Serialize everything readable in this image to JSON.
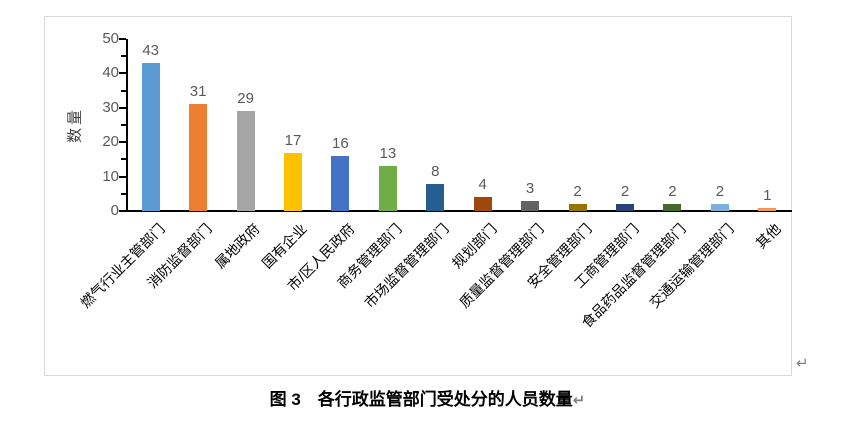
{
  "page": {
    "paragraph_mark": "↵"
  },
  "chart_data": {
    "type": "bar",
    "title": "图 3　各行政监管部门受处分的人员数量",
    "xlabel": "",
    "ylabel": "数量",
    "ylim": [
      0,
      50
    ],
    "yticks": [
      0,
      10,
      20,
      30,
      40,
      50
    ],
    "minor_tick_step": 5,
    "grid": false,
    "legend": "none",
    "value_labels_shown": true,
    "categories": [
      "燃气行业主管部门",
      "消防监督部门",
      "属地政府",
      "国有企业",
      "市/区人民政府",
      "商务管理部门",
      "市场监督管理部门",
      "规划部门",
      "质量监督管理部门",
      "安全管理部门",
      "工商管理部门",
      "食品药品监督管理部门",
      "交通运输管理部门",
      "其他"
    ],
    "values": [
      43,
      31,
      29,
      17,
      16,
      13,
      8,
      4,
      3,
      2,
      2,
      2,
      2,
      1
    ],
    "bar_colors": [
      "#5B9BD5",
      "#ED7D31",
      "#A5A5A5",
      "#FFC000",
      "#4472C4",
      "#70AD47",
      "#255E91",
      "#9E480E",
      "#636363",
      "#997300",
      "#264478",
      "#43682B",
      "#7CAFDD",
      "#F1975A"
    ],
    "colors": {
      "axis": "#000000",
      "tick_labels": "#595959",
      "value_labels": "#595959",
      "category_labels": "#000000",
      "axis_title": "#404040",
      "chart_border": "#D9D9D9",
      "caption_text": "#000000",
      "paragraph_mark": "#7F7F7F"
    }
  }
}
